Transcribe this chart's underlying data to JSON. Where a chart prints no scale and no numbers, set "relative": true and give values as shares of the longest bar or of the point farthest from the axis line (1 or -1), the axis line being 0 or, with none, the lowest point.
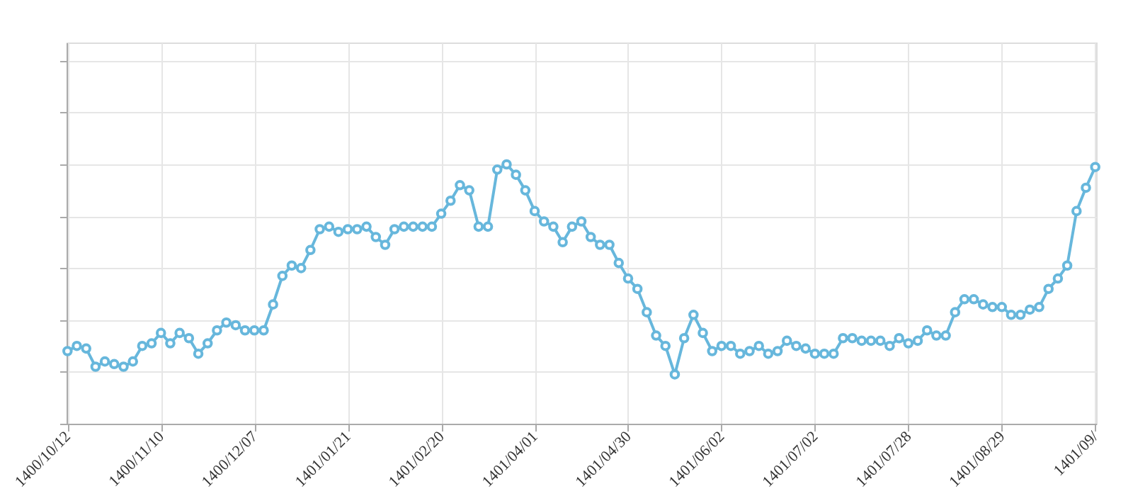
{
  "chart_data": {
    "type": "line",
    "relative": true,
    "grid": true,
    "tick_labels": "x",
    "marker": "circle",
    "line_style": "solid",
    "categories": [
      "1400/10/12",
      null,
      null,
      null,
      null,
      null,
      null,
      null,
      null,
      null,
      "1400/11/10",
      null,
      null,
      null,
      null,
      null,
      null,
      null,
      null,
      null,
      "1400/12/07",
      null,
      null,
      null,
      null,
      null,
      null,
      null,
      null,
      null,
      "1401/01/21",
      null,
      null,
      null,
      null,
      null,
      null,
      null,
      null,
      null,
      "1401/02/20",
      null,
      null,
      null,
      null,
      null,
      null,
      null,
      null,
      null,
      "1401/04/01",
      null,
      null,
      null,
      null,
      null,
      null,
      null,
      null,
      null,
      "1401/04/30",
      null,
      null,
      null,
      null,
      null,
      null,
      null,
      null,
      null,
      "1401/06/02",
      null,
      null,
      null,
      null,
      null,
      null,
      null,
      null,
      null,
      "1401/07/02",
      null,
      null,
      null,
      null,
      null,
      null,
      null,
      null,
      null,
      "1401/07/28",
      null,
      null,
      null,
      null,
      null,
      null,
      null,
      null,
      null,
      "1401/08/29",
      null,
      null,
      null,
      null,
      null,
      null,
      null,
      null,
      null,
      "1401/09/"
    ],
    "series": [
      {
        "color": "#67b7dc",
        "values": [
          0.28,
          0.3,
          0.29,
          0.22,
          0.24,
          0.23,
          0.22,
          0.24,
          0.3,
          0.31,
          0.35,
          0.31,
          0.35,
          0.33,
          0.27,
          0.31,
          0.36,
          0.39,
          0.38,
          0.36,
          0.36,
          0.36,
          0.46,
          0.57,
          0.61,
          0.6,
          0.67,
          0.75,
          0.76,
          0.74,
          0.75,
          0.75,
          0.76,
          0.72,
          0.69,
          0.75,
          0.76,
          0.76,
          0.76,
          0.76,
          0.81,
          0.86,
          0.92,
          0.9,
          0.76,
          0.76,
          0.98,
          1,
          0.96,
          0.9,
          0.82,
          0.78,
          0.76,
          0.7,
          0.76,
          0.78,
          0.72,
          0.69,
          0.69,
          0.62,
          0.56,
          0.52,
          0.43,
          0.34,
          0.3,
          0.19,
          0.33,
          0.42,
          0.35,
          0.28,
          0.3,
          0.3,
          0.27,
          0.28,
          0.3,
          0.27,
          0.28,
          0.32,
          0.3,
          0.29,
          0.27,
          0.27,
          0.27,
          0.33,
          0.33,
          0.32,
          0.32,
          0.32,
          0.3,
          0.33,
          0.31,
          0.32,
          0.36,
          0.34,
          0.34,
          0.43,
          0.48,
          0.48,
          0.46,
          0.45,
          0.45,
          0.42,
          0.42,
          0.44,
          0.45,
          0.52,
          0.56,
          0.61,
          0.82,
          0.91,
          0.99
        ]
      }
    ]
  }
}
